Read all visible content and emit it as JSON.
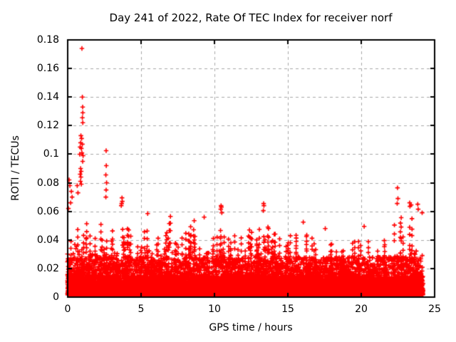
{
  "chart_data": {
    "type": "scatter",
    "title": "Day 241 of 2022, Rate Of TEC Index for receiver norf",
    "xlabel": "GPS time / hours",
    "ylabel": "ROTI / TECUs",
    "xlim": [
      0,
      25
    ],
    "ylim": [
      0,
      0.18
    ],
    "xticks": [
      0,
      5,
      10,
      15,
      20,
      25
    ],
    "yticks": [
      0,
      0.02,
      0.04,
      0.06,
      0.08,
      0.1,
      0.12,
      0.14,
      0.16,
      0.18
    ],
    "xtick_labels": [
      "0",
      "5",
      "10",
      "15",
      "20",
      "25"
    ],
    "ytick_labels": [
      "0",
      "0.02",
      "0.04",
      "0.06",
      "0.08",
      "0.1",
      "0.12",
      "0.14",
      "0.16",
      "0.18"
    ],
    "grid": "dashed both axes at major ticks",
    "legend": "none",
    "marker": "plus",
    "colors": {
      "points": "#ff0000",
      "axes": "#000000",
      "grid": "#a8a8a8",
      "background": "#ffffff",
      "text": "#000000"
    },
    "data_time_span_hours": [
      0,
      24.2
    ],
    "description": "Dense band of ROTI values mostly 0-0.03 TECUs across all 24 hours with spiky envelope to ~0.05; strong outlier cluster near hour 1 peaking at 0.174; secondary spikes near hours 2.6, 3.7, 10.5, 13.4, 22.5 and 23-24",
    "band_envelope_step_hours": 0.5,
    "band_envelope": [
      0.05,
      0.06,
      0.058,
      0.05,
      0.048,
      0.055,
      0.048,
      0.056,
      0.048,
      0.05,
      0.044,
      0.056,
      0.044,
      0.04,
      0.054,
      0.042,
      0.046,
      0.052,
      0.044,
      0.052,
      0.046,
      0.06,
      0.044,
      0.048,
      0.044,
      0.052,
      0.048,
      0.058,
      0.048,
      0.052,
      0.044,
      0.05,
      0.048,
      0.042,
      0.04,
      0.044,
      0.042,
      0.04,
      0.038,
      0.042,
      0.038,
      0.042,
      0.044,
      0.042,
      0.046,
      0.058,
      0.055,
      0.058,
      0.052
    ],
    "peak_points": [
      [
        0.97,
        0.174
      ],
      [
        1.0,
        0.14
      ],
      [
        1.02,
        0.133
      ],
      [
        1.03,
        0.129
      ],
      [
        1.0,
        0.1255
      ],
      [
        1.03,
        0.122
      ],
      [
        0.9,
        0.113
      ],
      [
        0.95,
        0.111
      ],
      [
        0.88,
        0.108
      ],
      [
        1.0,
        0.107
      ],
      [
        0.85,
        0.105
      ],
      [
        0.93,
        0.104
      ],
      [
        0.97,
        0.101
      ],
      [
        0.82,
        0.1
      ],
      [
        1.05,
        0.099
      ],
      [
        1.02,
        0.095
      ],
      [
        0.88,
        0.09
      ],
      [
        0.92,
        0.088
      ],
      [
        0.85,
        0.086
      ],
      [
        0.9,
        0.084
      ],
      [
        0.87,
        0.081
      ],
      [
        0.93,
        0.079
      ],
      [
        0.1,
        0.082
      ],
      [
        0.15,
        0.078
      ],
      [
        0.25,
        0.074
      ],
      [
        0.3,
        0.07
      ],
      [
        0.2,
        0.066
      ],
      [
        0.05,
        0.062
      ],
      [
        0.65,
        0.078
      ],
      [
        0.7,
        0.073
      ],
      [
        2.62,
        0.1025
      ],
      [
        2.63,
        0.092
      ],
      [
        2.6,
        0.0855
      ],
      [
        2.65,
        0.08
      ],
      [
        2.62,
        0.075
      ],
      [
        2.6,
        0.07
      ],
      [
        3.7,
        0.0695
      ],
      [
        3.72,
        0.067
      ],
      [
        3.68,
        0.0655
      ],
      [
        3.65,
        0.064
      ],
      [
        5.45,
        0.0585
      ],
      [
        7.0,
        0.0565
      ],
      [
        8.62,
        0.0535
      ],
      [
        9.3,
        0.056
      ],
      [
        10.45,
        0.064
      ],
      [
        10.47,
        0.063
      ],
      [
        10.43,
        0.0615
      ],
      [
        10.5,
        0.059
      ],
      [
        13.35,
        0.0655
      ],
      [
        13.37,
        0.064
      ],
      [
        13.33,
        0.0605
      ],
      [
        16.05,
        0.0525
      ],
      [
        17.55,
        0.048
      ],
      [
        20.2,
        0.0495
      ],
      [
        22.47,
        0.0765
      ],
      [
        22.5,
        0.069
      ],
      [
        22.45,
        0.0655
      ],
      [
        23.3,
        0.066
      ],
      [
        23.32,
        0.0635
      ],
      [
        23.4,
        0.0645
      ],
      [
        23.85,
        0.065
      ],
      [
        23.88,
        0.0615
      ],
      [
        24.15,
        0.059
      ]
    ],
    "generation": {
      "seed": 241,
      "epochs_per_hour": 60,
      "base_points_per_epoch": 6,
      "mid_points_per_epoch": 3,
      "texture_probability": 0.8,
      "chain_probability": 0.075
    }
  }
}
